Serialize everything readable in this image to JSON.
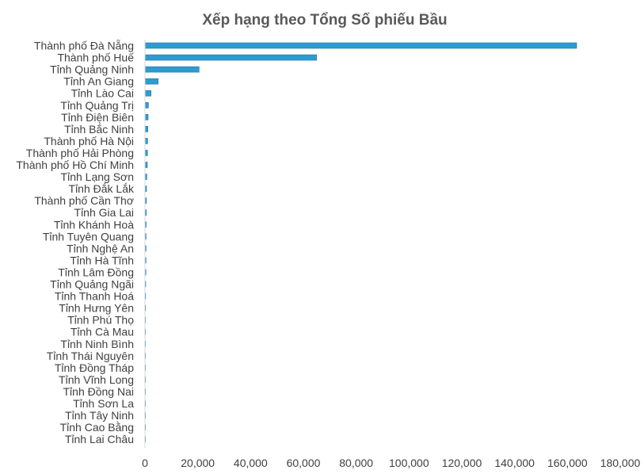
{
  "chart_data": {
    "type": "bar",
    "orientation": "horizontal",
    "title": "Xếp hạng theo Tổng Số phiếu Bầu",
    "xlabel": "",
    "ylabel": "",
    "xlim": [
      0,
      180000
    ],
    "x_ticks": [
      "0",
      "20,000",
      "40,000",
      "60,000",
      "80,000",
      "100,000",
      "120,000",
      "140,000",
      "160,000",
      "180,000"
    ],
    "grid": false,
    "legend": "none",
    "bar_color": "#2e9bd0",
    "bar_edge_color": "#1f78a8",
    "categories": [
      "Thành phố Đà Nẵng",
      "Thành phố Huế",
      "Tỉnh Quảng Ninh",
      "Tỉnh An Giang",
      "Tỉnh Lào Cai",
      "Tỉnh Quảng Trị",
      "Tỉnh Điện Biên",
      "Tỉnh Bắc Ninh",
      "Thành phố Hà Nội",
      "Thành phố Hải Phòng",
      "Thành phố Hồ Chí Minh",
      "Tỉnh Lạng Sơn",
      "Tỉnh Đắk Lắk",
      "Thành phố Cần Thơ",
      "Tỉnh Gia Lai",
      "Tỉnh Khánh Hoà",
      "Tỉnh Tuyên Quang",
      "Tỉnh Nghệ An",
      "Tỉnh Hà Tĩnh",
      "Tỉnh Lâm Đồng",
      "Tỉnh Quảng Ngãi",
      "Tỉnh Thanh Hoá",
      "Tỉnh Hưng Yên",
      "Tỉnh Phú Thọ",
      "Tỉnh Cà Mau",
      "Tỉnh Ninh Bình",
      "Tỉnh Thái Nguyên",
      "Tỉnh Đồng Tháp",
      "Tỉnh Vĩnh Long",
      "Tỉnh Đồng Nai",
      "Tỉnh Sơn La",
      "Tỉnh Tây Ninh",
      "Tỉnh Cao Bằng",
      "Tỉnh Lai Châu"
    ],
    "values": [
      163500,
      65000,
      20500,
      5000,
      2300,
      1300,
      1200,
      1100,
      1000,
      950,
      900,
      700,
      600,
      550,
      500,
      450,
      420,
      400,
      380,
      350,
      300,
      250,
      220,
      200,
      180,
      150,
      130,
      120,
      100,
      90,
      80,
      70,
      60,
      50
    ]
  }
}
